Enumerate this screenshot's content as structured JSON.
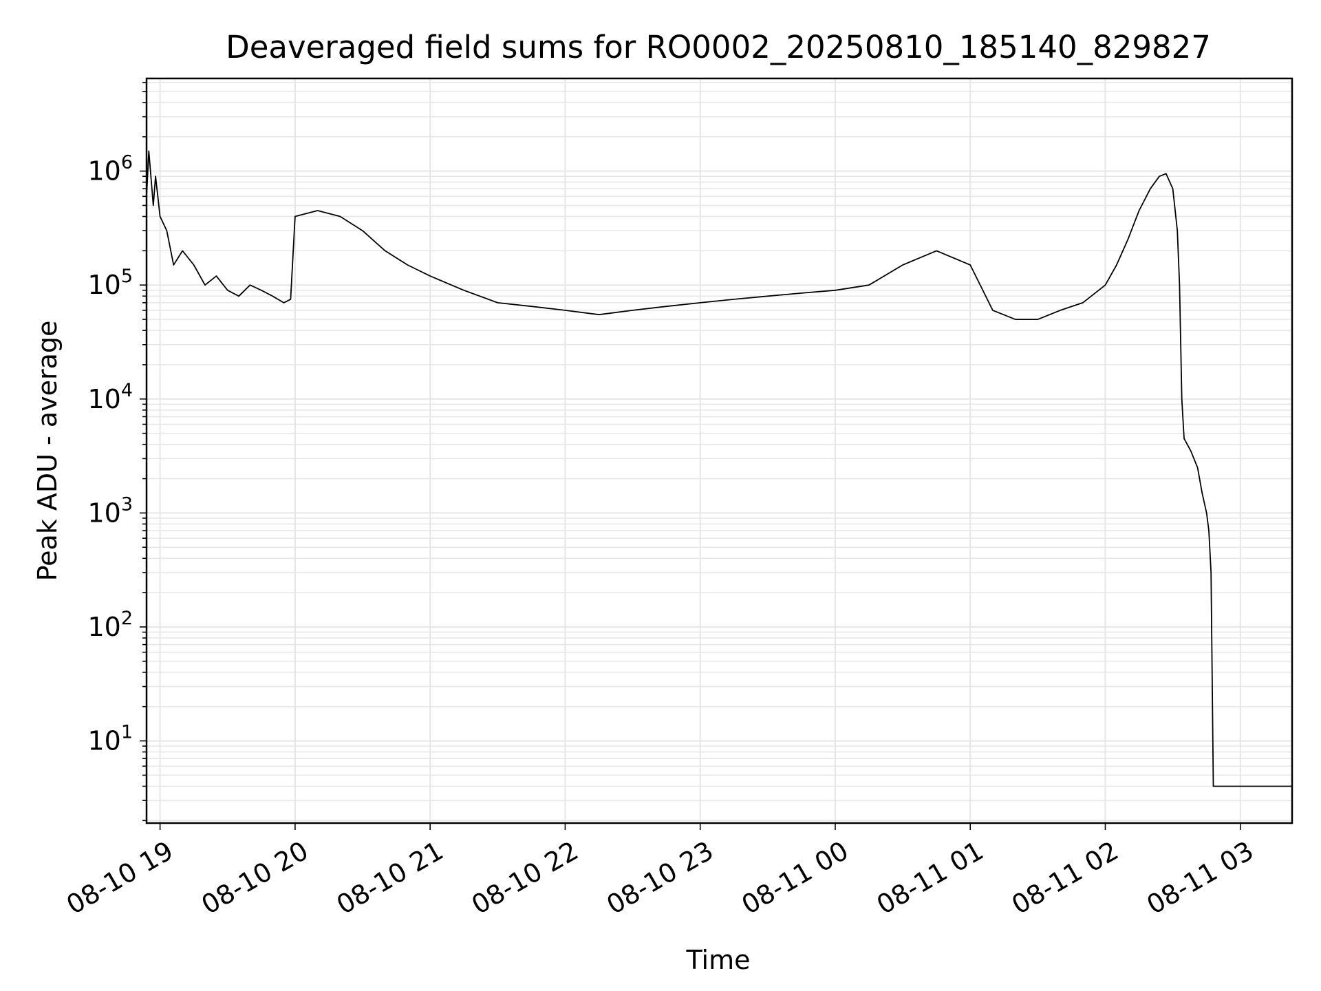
{
  "chart_data": {
    "type": "line",
    "title": "Deaveraged field sums for RO0002_20250810_185140_829827",
    "xlabel": "Time",
    "ylabel": "Peak ADU - average",
    "y_scale": "log",
    "xlim": [
      "2025-08-10 18:54",
      "2025-08-11 03:23"
    ],
    "ylim": [
      1.9,
      6500000
    ],
    "grid": true,
    "line_color": "#000000",
    "grid_color": "#e6e6e6",
    "x_ticks": [
      {
        "label": "08-10 19",
        "value": "2025-08-10 19:00"
      },
      {
        "label": "08-10 20",
        "value": "2025-08-10 20:00"
      },
      {
        "label": "08-10 21",
        "value": "2025-08-10 21:00"
      },
      {
        "label": "08-10 22",
        "value": "2025-08-10 22:00"
      },
      {
        "label": "08-10 23",
        "value": "2025-08-10 23:00"
      },
      {
        "label": "08-11 00",
        "value": "2025-08-11 00:00"
      },
      {
        "label": "08-11 01",
        "value": "2025-08-11 01:00"
      },
      {
        "label": "08-11 02",
        "value": "2025-08-11 02:00"
      },
      {
        "label": "08-11 03",
        "value": "2025-08-11 03:00"
      }
    ],
    "y_ticks": [
      {
        "base": "10",
        "exp": "1",
        "value": 10
      },
      {
        "base": "10",
        "exp": "2",
        "value": 100
      },
      {
        "base": "10",
        "exp": "3",
        "value": 1000
      },
      {
        "base": "10",
        "exp": "4",
        "value": 10000
      },
      {
        "base": "10",
        "exp": "5",
        "value": 100000
      },
      {
        "base": "10",
        "exp": "6",
        "value": 1000000
      }
    ],
    "series": [
      {
        "x": [
          "2025-08-10 18:54",
          "2025-08-10 18:55",
          "2025-08-10 18:57",
          "2025-08-10 18:58",
          "2025-08-10 19:00",
          "2025-08-10 19:03",
          "2025-08-10 19:06",
          "2025-08-10 19:10",
          "2025-08-10 19:15",
          "2025-08-10 19:20",
          "2025-08-10 19:25",
          "2025-08-10 19:30",
          "2025-08-10 19:35",
          "2025-08-10 19:40",
          "2025-08-10 19:45",
          "2025-08-10 19:50",
          "2025-08-10 19:55",
          "2025-08-10 19:58",
          "2025-08-10 20:00",
          "2025-08-10 20:10",
          "2025-08-10 20:20",
          "2025-08-10 20:30",
          "2025-08-10 20:40",
          "2025-08-10 20:50",
          "2025-08-10 21:00",
          "2025-08-10 21:15",
          "2025-08-10 21:30",
          "2025-08-10 21:45",
          "2025-08-10 22:00",
          "2025-08-10 22:15",
          "2025-08-10 22:30",
          "2025-08-10 22:45",
          "2025-08-10 23:00",
          "2025-08-10 23:15",
          "2025-08-10 23:30",
          "2025-08-10 23:45",
          "2025-08-11 00:00",
          "2025-08-11 00:15",
          "2025-08-11 00:30",
          "2025-08-11 00:45",
          "2025-08-11 01:00",
          "2025-08-11 01:10",
          "2025-08-11 01:20",
          "2025-08-11 01:30",
          "2025-08-11 01:40",
          "2025-08-11 01:50",
          "2025-08-11 02:00",
          "2025-08-11 02:05",
          "2025-08-11 02:10",
          "2025-08-11 02:15",
          "2025-08-11 02:20",
          "2025-08-11 02:24",
          "2025-08-11 02:27",
          "2025-08-11 02:30",
          "2025-08-11 02:32",
          "2025-08-11 02:33",
          "2025-08-11 02:34",
          "2025-08-11 02:35",
          "2025-08-11 02:38",
          "2025-08-11 02:41",
          "2025-08-11 02:43",
          "2025-08-11 02:45",
          "2025-08-11 02:46",
          "2025-08-11 02:47",
          "2025-08-11 02:48",
          "2025-08-11 02:55",
          "2025-08-11 03:05",
          "2025-08-11 03:15",
          "2025-08-11 03:23"
        ],
        "y": [
          600000,
          1500000,
          500000,
          900000,
          400000,
          300000,
          150000,
          200000,
          150000,
          100000,
          120000,
          90000,
          80000,
          100000,
          90000,
          80000,
          70000,
          75000,
          400000,
          450000,
          400000,
          300000,
          200000,
          150000,
          120000,
          90000,
          70000,
          65000,
          60000,
          55000,
          60000,
          65000,
          70000,
          75000,
          80000,
          85000,
          90000,
          100000,
          150000,
          200000,
          150000,
          60000,
          50000,
          50000,
          60000,
          70000,
          100000,
          150000,
          250000,
          450000,
          700000,
          900000,
          950000,
          700000,
          300000,
          100000,
          10000,
          4500,
          3500,
          2500,
          1500,
          1000,
          700,
          300,
          4,
          4,
          4,
          4,
          4
        ]
      }
    ]
  }
}
